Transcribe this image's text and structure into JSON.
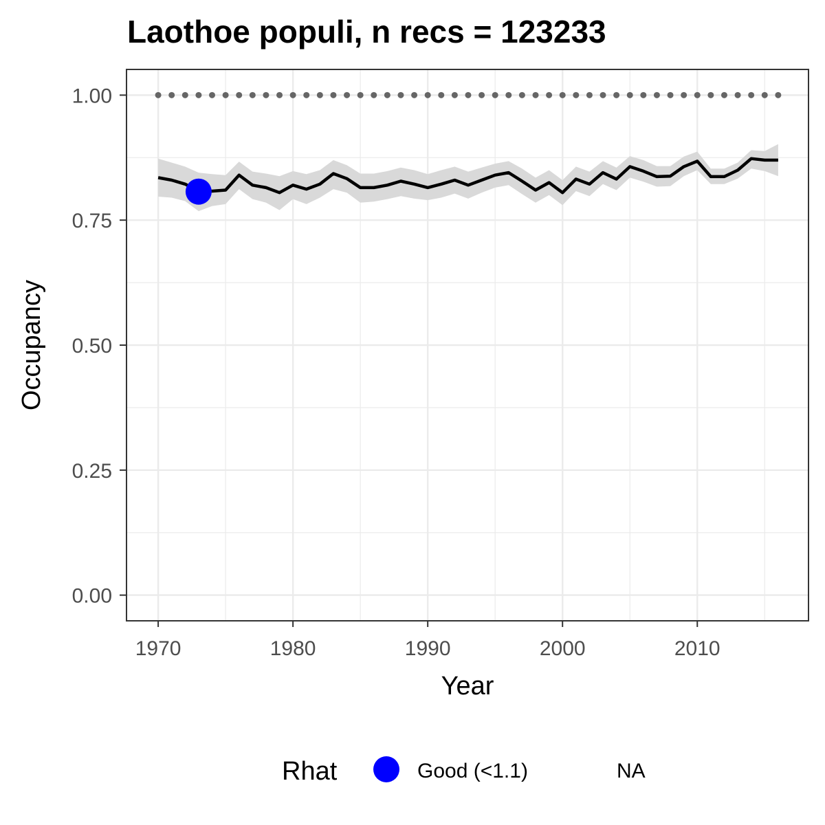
{
  "chart_data": {
    "type": "line",
    "title": "Laothoe populi, n recs = 123233",
    "xlabel": "Year",
    "ylabel": "Occupancy",
    "xlim": [
      1967.7,
      2018.2
    ],
    "ylim": [
      -0.05,
      1.05
    ],
    "x_ticks": [
      1970,
      1980,
      1990,
      2000,
      2010
    ],
    "y_ticks": [
      0.0,
      0.25,
      0.5,
      0.75,
      1.0
    ],
    "x_tick_labels": [
      "1970",
      "1980",
      "1990",
      "2000",
      "2010"
    ],
    "y_tick_labels": [
      "0.00",
      "0.25",
      "0.50",
      "0.75",
      "1.00"
    ],
    "grid": true,
    "series": [
      {
        "role": "mean",
        "color": "#000000",
        "x": [
          1970,
          1971,
          1972,
          1973,
          1974,
          1975,
          1976,
          1977,
          1978,
          1979,
          1980,
          1981,
          1982,
          1983,
          1984,
          1985,
          1986,
          1987,
          1988,
          1989,
          1990,
          1991,
          1992,
          1993,
          1994,
          1995,
          1996,
          1997,
          1998,
          1999,
          2000,
          2001,
          2002,
          2003,
          2004,
          2005,
          2006,
          2007,
          2008,
          2009,
          2010,
          2011,
          2012,
          2013,
          2014,
          2015,
          2016
        ],
        "y": [
          0.835,
          0.83,
          0.822,
          0.808,
          0.808,
          0.81,
          0.84,
          0.82,
          0.815,
          0.805,
          0.82,
          0.812,
          0.822,
          0.843,
          0.833,
          0.815,
          0.815,
          0.82,
          0.828,
          0.822,
          0.815,
          0.822,
          0.83,
          0.82,
          0.83,
          0.84,
          0.845,
          0.828,
          0.81,
          0.825,
          0.805,
          0.832,
          0.822,
          0.845,
          0.832,
          0.857,
          0.848,
          0.837,
          0.838,
          0.857,
          0.868,
          0.837,
          0.837,
          0.85,
          0.873,
          0.87,
          0.87
        ]
      },
      {
        "role": "credible-interval",
        "color": "#d9d9d9",
        "x": [
          1970,
          1971,
          1972,
          1973,
          1974,
          1975,
          1976,
          1977,
          1978,
          1979,
          1980,
          1981,
          1982,
          1983,
          1984,
          1985,
          1986,
          1987,
          1988,
          1989,
          1990,
          1991,
          1992,
          1993,
          1994,
          1995,
          1996,
          1997,
          1998,
          1999,
          2000,
          2001,
          2002,
          2003,
          2004,
          2005,
          2006,
          2007,
          2008,
          2009,
          2010,
          2011,
          2012,
          2013,
          2014,
          2015,
          2016
        ],
        "lower": [
          0.797,
          0.795,
          0.788,
          0.768,
          0.778,
          0.782,
          0.812,
          0.792,
          0.785,
          0.77,
          0.792,
          0.782,
          0.795,
          0.812,
          0.805,
          0.785,
          0.787,
          0.792,
          0.798,
          0.793,
          0.79,
          0.795,
          0.803,
          0.793,
          0.805,
          0.815,
          0.82,
          0.802,
          0.785,
          0.8,
          0.78,
          0.808,
          0.798,
          0.822,
          0.81,
          0.835,
          0.827,
          0.817,
          0.818,
          0.838,
          0.85,
          0.822,
          0.822,
          0.833,
          0.853,
          0.848,
          0.838
        ],
        "upper": [
          0.873,
          0.865,
          0.857,
          0.845,
          0.842,
          0.84,
          0.867,
          0.847,
          0.843,
          0.838,
          0.848,
          0.842,
          0.85,
          0.87,
          0.86,
          0.843,
          0.843,
          0.848,
          0.855,
          0.85,
          0.842,
          0.85,
          0.857,
          0.847,
          0.855,
          0.863,
          0.868,
          0.853,
          0.835,
          0.85,
          0.83,
          0.857,
          0.847,
          0.868,
          0.855,
          0.878,
          0.87,
          0.858,
          0.858,
          0.877,
          0.887,
          0.853,
          0.853,
          0.865,
          0.89,
          0.888,
          0.902
        ]
      },
      {
        "role": "reference",
        "color": "#666666",
        "style": "dotted",
        "x": [
          1970,
          1971,
          1972,
          1973,
          1974,
          1975,
          1976,
          1977,
          1978,
          1979,
          1980,
          1981,
          1982,
          1983,
          1984,
          1985,
          1986,
          1987,
          1988,
          1989,
          1990,
          1991,
          1992,
          1993,
          1994,
          1995,
          1996,
          1997,
          1998,
          1999,
          2000,
          2001,
          2002,
          2003,
          2004,
          2005,
          2006,
          2007,
          2008,
          2009,
          2010,
          2011,
          2012,
          2013,
          2014,
          2015,
          2016
        ],
        "y": [
          1,
          1,
          1,
          1,
          1,
          1,
          1,
          1,
          1,
          1,
          1,
          1,
          1,
          1,
          1,
          1,
          1,
          1,
          1,
          1,
          1,
          1,
          1,
          1,
          1,
          1,
          1,
          1,
          1,
          1,
          1,
          1,
          1,
          1,
          1,
          1,
          1,
          1,
          1,
          1,
          1,
          1,
          1,
          1,
          1,
          1,
          1
        ]
      },
      {
        "role": "rhat-points",
        "name": "Good (<1.1)",
        "color": "#0000ff",
        "x": [
          1973
        ],
        "y": [
          0.807
        ]
      }
    ],
    "legend": {
      "position": "bottom",
      "title": "Rhat",
      "entries": [
        {
          "label": "Good (<1.1)",
          "color": "#0000ff",
          "marker": "circle"
        },
        {
          "label": "NA",
          "color": null,
          "marker": "none"
        }
      ]
    }
  }
}
